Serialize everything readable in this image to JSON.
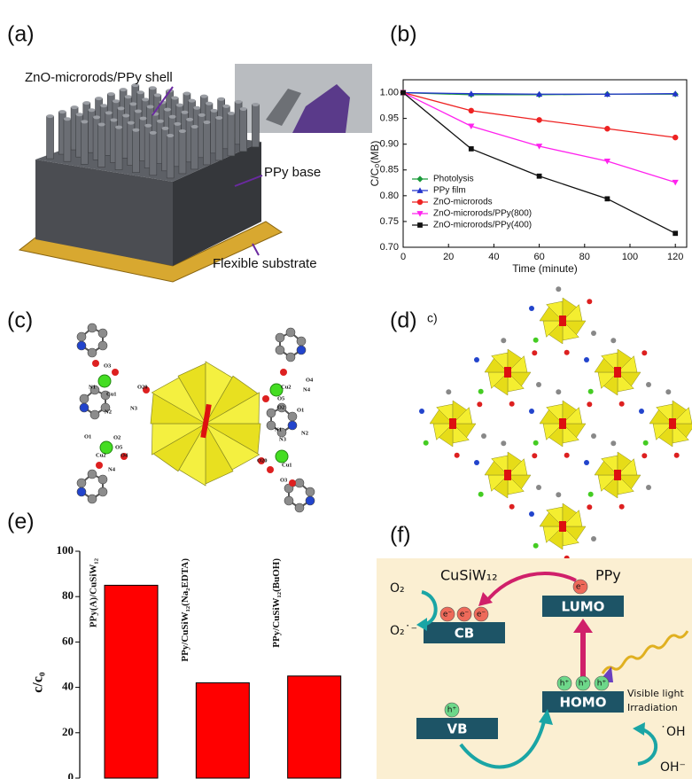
{
  "panel_labels": [
    "(a)",
    "(b)",
    "(c)",
    "(d)",
    "(e)",
    "(f)"
  ],
  "panel_a": {
    "labels": [
      "ZnO-microrods/PPy shell",
      "PPy base",
      "Flexible substrate"
    ]
  },
  "panel_c": {
    "atom_labels": [
      "O3",
      "N1",
      "Cu1",
      "O20",
      "N2",
      "N3",
      "O1",
      "O2",
      "O5",
      "Cu2",
      "O4",
      "N4",
      "O4",
      "Cu2",
      "N4",
      "O5",
      "O2",
      "O1",
      "N1",
      "N2",
      "N3",
      "O20",
      "Cu1",
      "O3"
    ]
  },
  "panel_d": {
    "fragment": "c)"
  },
  "panel_f": {
    "title_left": "CuSiW₁₂",
    "title_right": "PPy",
    "lumo": "LUMO",
    "cb": "CB",
    "homo": "HOMO",
    "vb": "VB",
    "light": [
      "Visible light",
      "Irradiation"
    ],
    "o2": "O₂",
    "superoxide": "O₂˙⁻",
    "hydroxyl_radical": "˙OH",
    "hydroxide": "OH⁻",
    "electron": "e⁻",
    "hole": "h⁺"
  },
  "chart_data": [
    {
      "type": "line",
      "xlabel": "Time (minute)",
      "ylabel": "C/C₀(MB)",
      "x": [
        0,
        30,
        60,
        90,
        120
      ],
      "series": [
        {
          "name": "Photolysis",
          "color": "#1a9a3a",
          "marker": "diamond",
          "values": [
            1.0,
            0.996,
            0.996,
            0.997,
            0.997
          ]
        },
        {
          "name": "PPy film",
          "color": "#2233cc",
          "marker": "triangle",
          "values": [
            1.0,
            0.998,
            0.997,
            0.997,
            0.998
          ]
        },
        {
          "name": "ZnO-microrods",
          "color": "#ee2222",
          "marker": "circle",
          "values": [
            1.0,
            0.965,
            0.947,
            0.93,
            0.913
          ]
        },
        {
          "name": "ZnO-microrods/PPy(800)",
          "color": "#ff22ee",
          "marker": "triangle-down",
          "values": [
            1.0,
            0.935,
            0.896,
            0.867,
            0.826
          ]
        },
        {
          "name": "ZnO-microrods/PPy(400)",
          "color": "#111111",
          "marker": "square",
          "values": [
            1.0,
            0.891,
            0.838,
            0.794,
            0.727
          ]
        }
      ],
      "xlim": [
        0,
        125
      ],
      "xticks": [
        0,
        20,
        40,
        60,
        80,
        100,
        120
      ],
      "ylim": [
        0.7,
        1.025
      ],
      "yticks": [
        {
          "value": 0.7,
          "label": "0.70"
        },
        {
          "value": 0.75,
          "label": "0.75"
        },
        {
          "value": 0.8,
          "label": "0.80"
        },
        {
          "value": 0.85,
          "label": "0.85"
        },
        {
          "value": 0.9,
          "label": "0.90"
        },
        {
          "value": 0.95,
          "label": "0.95"
        },
        {
          "value": 1.0,
          "label": "1.00"
        }
      ],
      "legend": "lower-left"
    },
    {
      "type": "bar",
      "ylabel": "c/c₀",
      "categories": [
        "PPy(A)/CuSiW₁₂",
        "PPy/CuSiW₁₂(Na₂EDTA)",
        "PPy/CuSiW₁₂(BuOH)"
      ],
      "values": [
        85,
        42,
        45
      ],
      "color": "#ff0000",
      "ylim": [
        0,
        100
      ],
      "yticks": [
        0,
        20,
        40,
        60,
        80,
        100
      ]
    }
  ]
}
